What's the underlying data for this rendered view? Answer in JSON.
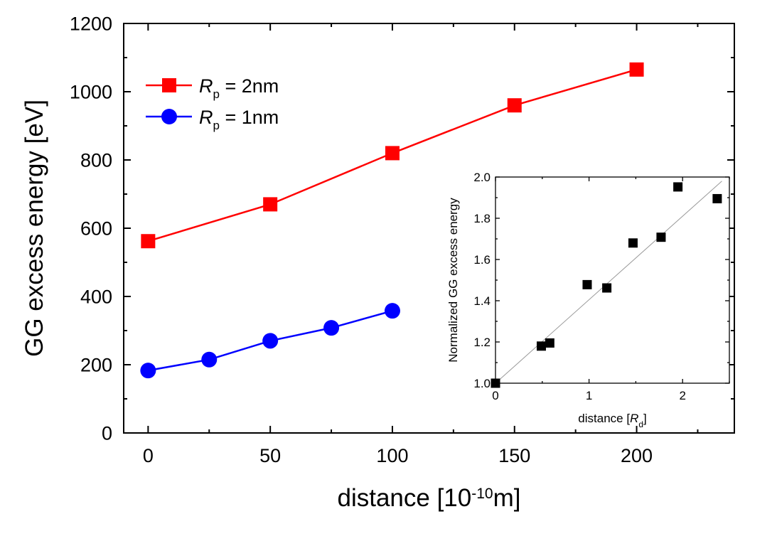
{
  "chart_data": [
    {
      "type": "line",
      "xlabel": {
        "pre": "distance [10",
        "sup": "-10",
        "post": "m]"
      },
      "ylabel": "GG excess energy [eV]",
      "xlim": [
        -10,
        240
      ],
      "ylim": [
        0,
        1200
      ],
      "xticks": [
        0,
        50,
        100,
        150,
        200
      ],
      "yticks": [
        0,
        200,
        400,
        600,
        800,
        1000,
        1200
      ],
      "legend_position": "top-left",
      "series": [
        {
          "name": {
            "sym": "R",
            "sub": "p",
            "rest": " = 2nm"
          },
          "color": "#ff0000",
          "marker": "square",
          "x": [
            0,
            50,
            100,
            150,
            200
          ],
          "y": [
            562,
            670,
            820,
            960,
            1065
          ]
        },
        {
          "name": {
            "sym": "R",
            "sub": "p",
            "rest": " = 1nm"
          },
          "color": "#0000ff",
          "marker": "circle",
          "x": [
            0,
            25,
            50,
            75,
            100
          ],
          "y": [
            183,
            215,
            270,
            308,
            358
          ]
        }
      ]
    },
    {
      "type": "scatter",
      "xlabel": {
        "pre": "distance [",
        "sym": "R",
        "sub": "d",
        "post": "]"
      },
      "ylabel": "Normalized GG excess energy",
      "xlim": [
        0,
        2.5
      ],
      "ylim": [
        1.0,
        2.0
      ],
      "xticks": [
        0,
        1,
        2
      ],
      "yticks": [
        "1.0",
        "1.2",
        "1.4",
        "1.6",
        "1.8",
        "2.0"
      ],
      "series": [
        {
          "marker": "square",
          "color": "#000000",
          "x": [
            0,
            0.49,
            0.58,
            0.98,
            1.19,
            1.47,
            1.77,
            1.95,
            2.37
          ],
          "y": [
            1.0,
            1.18,
            1.195,
            1.478,
            1.462,
            1.68,
            1.708,
            1.952,
            1.895
          ]
        }
      ],
      "fit_line": {
        "color": "#999999",
        "x": [
          0,
          2.42
        ],
        "y": [
          1.0,
          1.98
        ]
      }
    }
  ]
}
